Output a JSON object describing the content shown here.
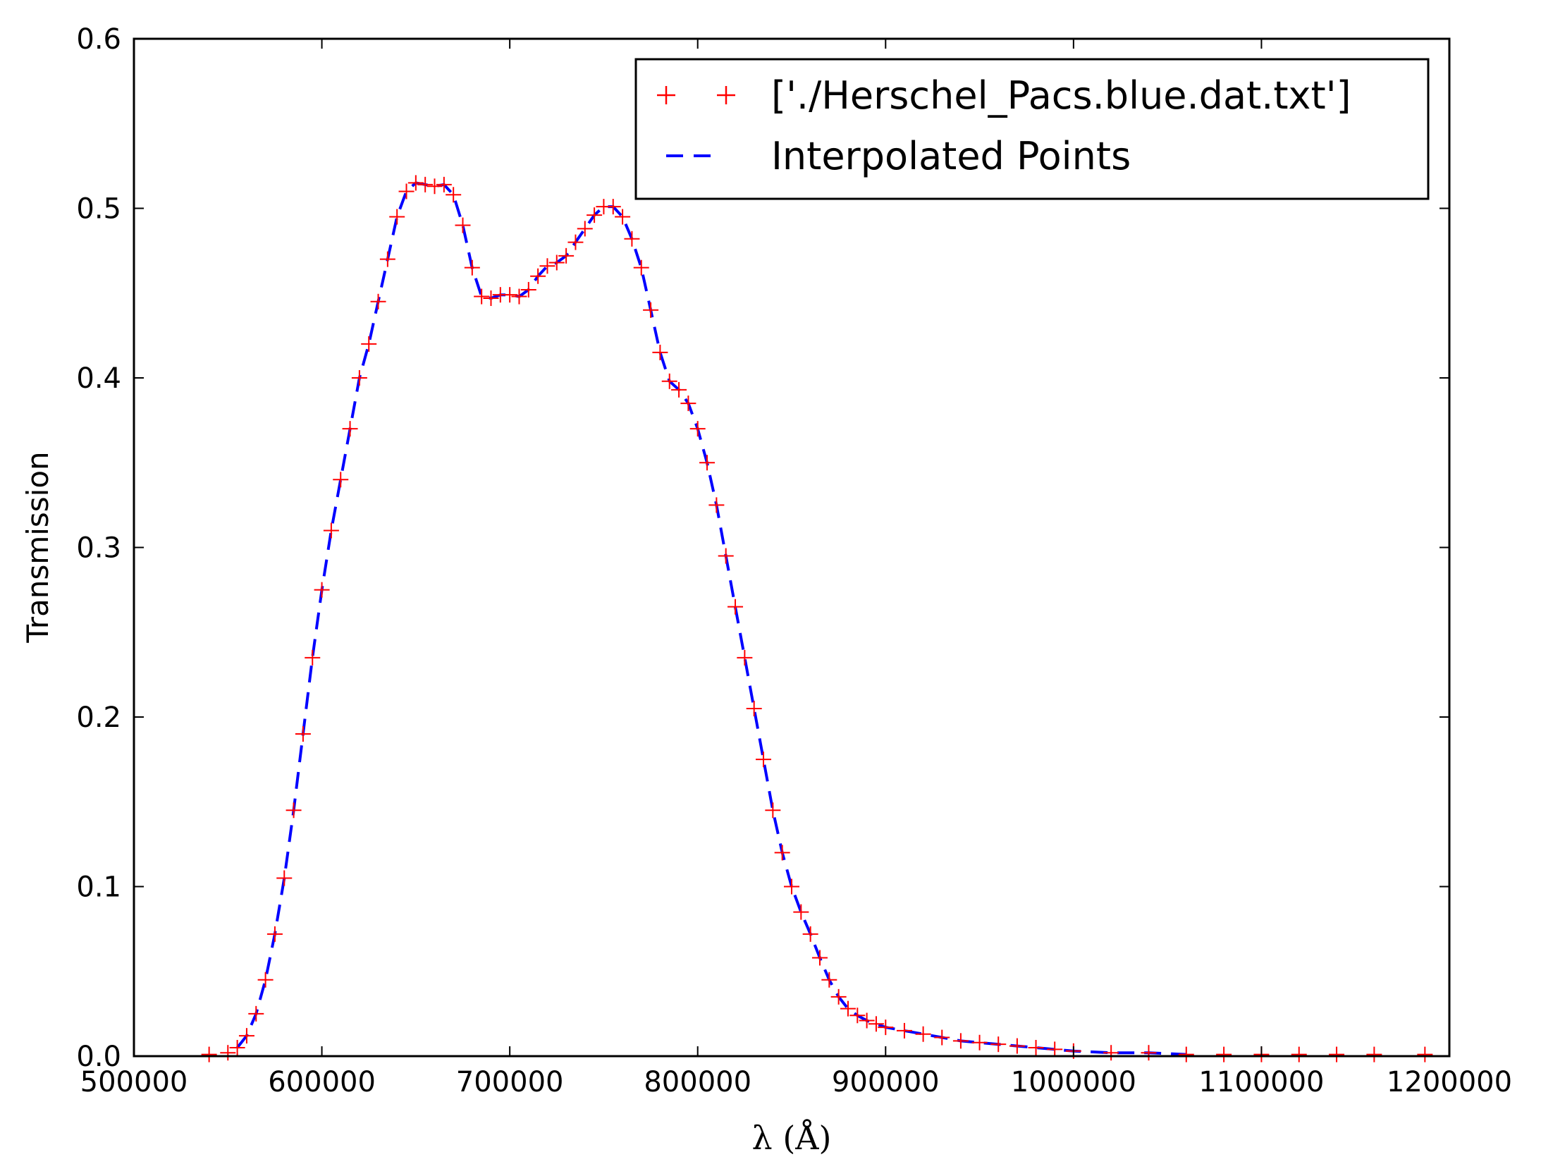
{
  "chart_data": {
    "type": "line",
    "xlabel": "λ (Å)",
    "ylabel": "Transmission",
    "xlim": [
      500000,
      1200000
    ],
    "ylim": [
      0.0,
      0.6
    ],
    "x_ticks": [
      "500000",
      "600000",
      "700000",
      "800000",
      "900000",
      "1000000",
      "1100000",
      "1200000"
    ],
    "y_ticks": [
      "0.0",
      "0.1",
      "0.2",
      "0.3",
      "0.4",
      "0.5",
      "0.6"
    ],
    "grid": false,
    "legend_position": "top-right",
    "colors": {
      "data": "#ff0000",
      "interp": "#0000ff",
      "axis": "#000000"
    },
    "series": [
      {
        "name": "['./Herschel_Pacs.blue.dat.txt']",
        "style": "red-plus-markers",
        "x": [
          540000,
          550000,
          555000,
          560000,
          565000,
          570000,
          575000,
          580000,
          585000,
          590000,
          595000,
          600000,
          605000,
          610000,
          615000,
          620000,
          625000,
          630000,
          635000,
          640000,
          645000,
          650000,
          655000,
          660000,
          665000,
          670000,
          675000,
          680000,
          685000,
          690000,
          695000,
          700000,
          705000,
          710000,
          715000,
          720000,
          725000,
          730000,
          735000,
          740000,
          745000,
          750000,
          755000,
          760000,
          765000,
          770000,
          775000,
          780000,
          785000,
          790000,
          795000,
          800000,
          805000,
          810000,
          815000,
          820000,
          825000,
          830000,
          835000,
          840000,
          845000,
          850000,
          855000,
          860000,
          865000,
          870000,
          875000,
          880000,
          885000,
          890000,
          895000,
          900000,
          910000,
          920000,
          930000,
          940000,
          950000,
          960000,
          970000,
          980000,
          990000,
          1000000,
          1020000,
          1040000,
          1060000,
          1080000,
          1100000,
          1120000,
          1140000,
          1160000,
          1187000
        ],
        "y": [
          0.001,
          0.002,
          0.005,
          0.012,
          0.025,
          0.045,
          0.072,
          0.105,
          0.145,
          0.19,
          0.235,
          0.275,
          0.31,
          0.34,
          0.37,
          0.4,
          0.42,
          0.445,
          0.47,
          0.495,
          0.51,
          0.515,
          0.514,
          0.513,
          0.514,
          0.508,
          0.49,
          0.465,
          0.448,
          0.447,
          0.449,
          0.449,
          0.448,
          0.452,
          0.46,
          0.466,
          0.468,
          0.472,
          0.48,
          0.488,
          0.496,
          0.501,
          0.501,
          0.495,
          0.482,
          0.465,
          0.44,
          0.415,
          0.398,
          0.393,
          0.385,
          0.37,
          0.35,
          0.325,
          0.295,
          0.265,
          0.235,
          0.205,
          0.175,
          0.145,
          0.12,
          0.1,
          0.085,
          0.072,
          0.058,
          0.045,
          0.035,
          0.028,
          0.024,
          0.021,
          0.019,
          0.017,
          0.015,
          0.013,
          0.011,
          0.009,
          0.008,
          0.007,
          0.006,
          0.005,
          0.004,
          0.003,
          0.002,
          0.002,
          0.001,
          0.001,
          0.001,
          0.001,
          0.001,
          0.001,
          0.001
        ]
      },
      {
        "name": "Interpolated Points",
        "style": "blue-dashed-line",
        "x": [
          555000,
          560000,
          565000,
          570000,
          575000,
          580000,
          585000,
          590000,
          595000,
          600000,
          605000,
          610000,
          615000,
          620000,
          625000,
          630000,
          635000,
          640000,
          645000,
          650000,
          655000,
          660000,
          665000,
          670000,
          675000,
          680000,
          685000,
          690000,
          695000,
          700000,
          705000,
          710000,
          715000,
          720000,
          725000,
          730000,
          735000,
          740000,
          745000,
          750000,
          755000,
          760000,
          765000,
          770000,
          775000,
          780000,
          785000,
          790000,
          795000,
          800000,
          805000,
          810000,
          815000,
          820000,
          825000,
          830000,
          835000,
          840000,
          845000,
          850000,
          855000,
          860000,
          865000,
          870000,
          875000,
          880000,
          885000,
          890000,
          895000,
          900000,
          910000,
          920000,
          930000,
          940000,
          950000,
          960000,
          970000,
          980000,
          990000,
          1000000,
          1020000,
          1040000,
          1060000
        ],
        "y": [
          0.005,
          0.012,
          0.025,
          0.045,
          0.072,
          0.105,
          0.145,
          0.19,
          0.235,
          0.275,
          0.31,
          0.34,
          0.37,
          0.4,
          0.42,
          0.445,
          0.47,
          0.495,
          0.51,
          0.515,
          0.514,
          0.513,
          0.514,
          0.508,
          0.49,
          0.465,
          0.448,
          0.447,
          0.449,
          0.449,
          0.448,
          0.452,
          0.46,
          0.466,
          0.468,
          0.472,
          0.48,
          0.488,
          0.496,
          0.501,
          0.501,
          0.495,
          0.482,
          0.465,
          0.44,
          0.415,
          0.398,
          0.393,
          0.385,
          0.37,
          0.35,
          0.325,
          0.295,
          0.265,
          0.235,
          0.205,
          0.175,
          0.145,
          0.12,
          0.1,
          0.085,
          0.072,
          0.058,
          0.045,
          0.035,
          0.028,
          0.024,
          0.021,
          0.019,
          0.017,
          0.015,
          0.013,
          0.011,
          0.009,
          0.008,
          0.007,
          0.006,
          0.005,
          0.004,
          0.003,
          0.002,
          0.002,
          0.001
        ]
      }
    ]
  }
}
